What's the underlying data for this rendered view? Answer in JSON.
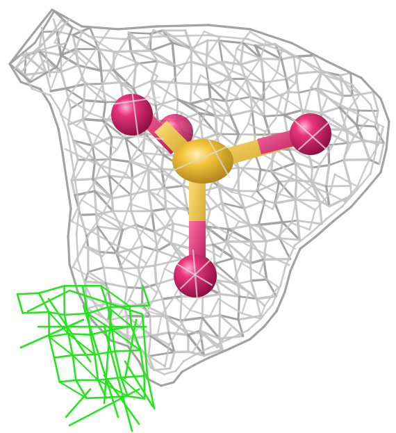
{
  "colors": {
    "background": "#ffffff",
    "density_mesh_gray": "#c4c4c4",
    "density_mesh_gray_dark": "#9e9e9e",
    "density_mesh_green": "#22e61a",
    "oxygen_atom": "#e0236f",
    "sulfur_atom": "#f2c438",
    "bond_sulfur": "#f2c438",
    "bond_oxygen": "#e8337a"
  },
  "molecule": {
    "type": "sulfate-ion",
    "atoms": [
      {
        "element": "S",
        "label_visible": false
      },
      {
        "element": "O",
        "label_visible": false
      },
      {
        "element": "O",
        "label_visible": false
      },
      {
        "element": "O",
        "label_visible": false
      },
      {
        "element": "O",
        "label_visible": false
      }
    ]
  },
  "meshes": [
    {
      "name": "electron-density-2fofc",
      "style": "wireframe",
      "color_key": "density_mesh_gray"
    },
    {
      "name": "difference-density-fofc",
      "style": "wireframe",
      "color_key": "density_mesh_green"
    }
  ]
}
